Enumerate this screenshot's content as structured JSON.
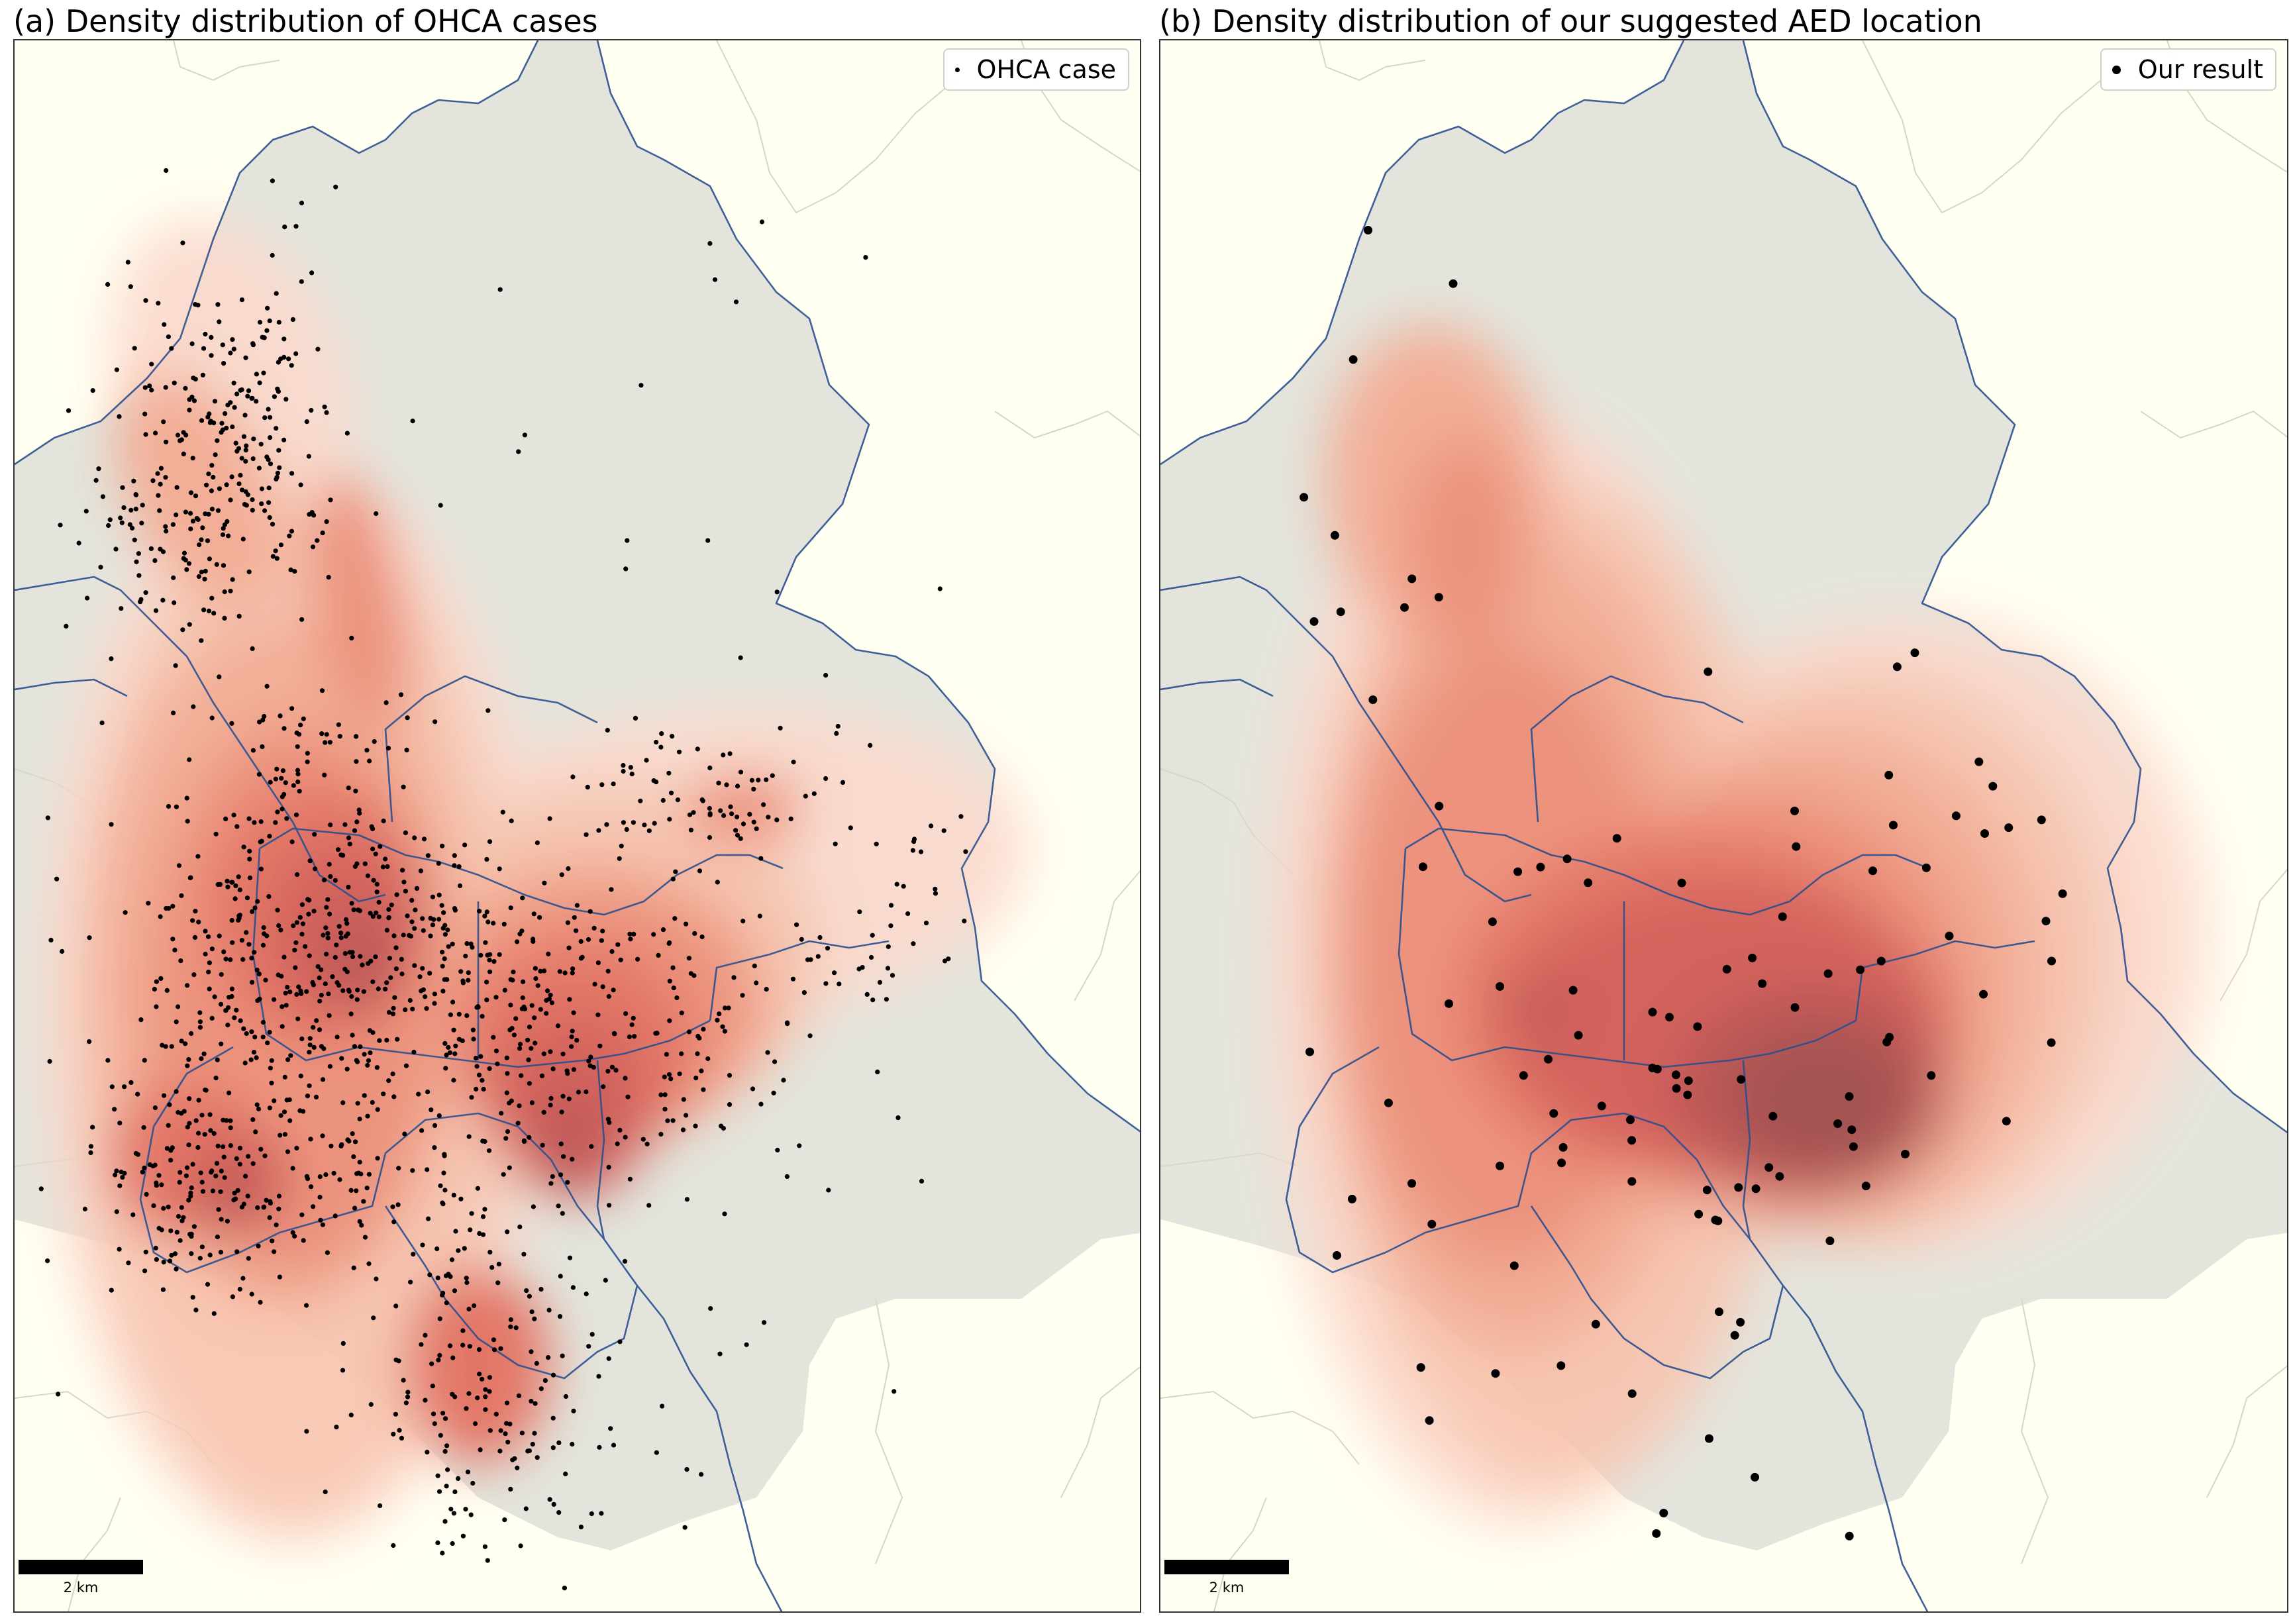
{
  "panels": [
    {
      "title": "(a) Density distribution of OHCA cases",
      "legend_label": "OHCA case",
      "scale_label": "2 km",
      "point_style": "small black dots"
    },
    {
      "title": "(b) Density distribution of our suggested AED location",
      "legend_label": "Our result",
      "scale_label": "2 km",
      "point_style": "larger black dots"
    }
  ],
  "colors": {
    "background_land": "#fffff2",
    "region_fill": "#e3e5dd",
    "boundary_lines": "#2b4f8f",
    "density_ramp": [
      "#fbd9cc",
      "#f8c3ae",
      "#f4a88f",
      "#ee8a73",
      "#e36b5a",
      "#d2544f",
      "#b94a4a",
      "#9e4444"
    ]
  },
  "icons": {
    "legend_marker": "dot-marker-icon"
  }
}
